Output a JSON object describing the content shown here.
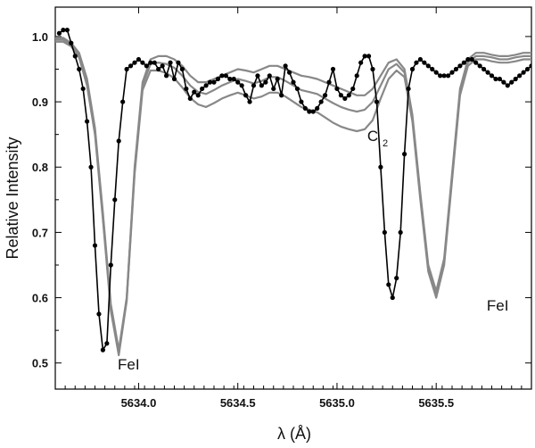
{
  "chart_data": {
    "type": "line",
    "xlabel": "λ (Å)",
    "ylabel": "Relative Intensity",
    "xlim": [
      5633.58,
      5635.98
    ],
    "ylim": [
      0.46,
      1.045
    ],
    "x_ticks": [
      5634.0,
      5634.5,
      5635.0,
      5635.5
    ],
    "x_tick_labels": [
      "5634.0",
      "5634.5",
      "5635.0",
      "5635.5"
    ],
    "y_ticks": [
      0.5,
      0.6,
      0.7,
      0.8,
      0.9,
      1.0
    ],
    "y_tick_labels": [
      "0.5",
      "0.6",
      "0.7",
      "0.8",
      "0.9",
      "1.0"
    ],
    "grid": false,
    "annotations": [
      {
        "text": "FeI",
        "x": 5633.95,
        "y": 0.49
      },
      {
        "text": "FeI",
        "x": 5635.81,
        "y": 0.58
      },
      {
        "text": "C",
        "sub": "2",
        "x": 5635.18,
        "y": 0.84
      }
    ],
    "series": [
      {
        "role": "observed",
        "color": "#000000",
        "markers": true,
        "x": [
          5633.6,
          5633.62,
          5633.64,
          5633.66,
          5633.68,
          5633.7,
          5633.72,
          5633.74,
          5633.76,
          5633.78,
          5633.8,
          5633.82,
          5633.84,
          5633.86,
          5633.88,
          5633.9,
          5633.92,
          5633.94,
          5633.96,
          5633.98,
          5634.0,
          5634.02,
          5634.04,
          5634.06,
          5634.08,
          5634.1,
          5634.12,
          5634.14,
          5634.16,
          5634.18,
          5634.2,
          5634.22,
          5634.24,
          5634.26,
          5634.28,
          5634.3,
          5634.32,
          5634.34,
          5634.36,
          5634.38,
          5634.4,
          5634.42,
          5634.44,
          5634.46,
          5634.48,
          5634.5,
          5634.52,
          5634.54,
          5634.56,
          5634.58,
          5634.6,
          5634.62,
          5634.64,
          5634.66,
          5634.68,
          5634.7,
          5634.72,
          5634.74,
          5634.76,
          5634.78,
          5634.8,
          5634.82,
          5634.84,
          5634.86,
          5634.88,
          5634.9,
          5634.92,
          5634.94,
          5634.96,
          5634.98,
          5635.0,
          5635.02,
          5635.04,
          5635.06,
          5635.08,
          5635.1,
          5635.12,
          5635.14,
          5635.16,
          5635.18,
          5635.2,
          5635.22,
          5635.24,
          5635.26,
          5635.28,
          5635.3,
          5635.32,
          5635.34,
          5635.36,
          5635.38,
          5635.4,
          5635.42,
          5635.44,
          5635.46,
          5635.48,
          5635.5,
          5635.52,
          5635.54,
          5635.56,
          5635.58,
          5635.6,
          5635.62,
          5635.64,
          5635.66,
          5635.68,
          5635.7,
          5635.72,
          5635.74,
          5635.76,
          5635.78,
          5635.8,
          5635.82,
          5635.84,
          5635.86,
          5635.88,
          5635.9,
          5635.92,
          5635.94,
          5635.96,
          5635.98
        ],
        "y": [
          1.005,
          1.01,
          1.01,
          0.99,
          0.97,
          0.95,
          0.92,
          0.87,
          0.8,
          0.68,
          0.575,
          0.52,
          0.53,
          0.65,
          0.75,
          0.84,
          0.9,
          0.95,
          0.955,
          0.96,
          0.965,
          0.96,
          0.955,
          0.96,
          0.96,
          0.95,
          0.955,
          0.94,
          0.96,
          0.935,
          0.96,
          0.95,
          0.92,
          0.905,
          0.915,
          0.91,
          0.92,
          0.925,
          0.93,
          0.93,
          0.935,
          0.94,
          0.94,
          0.935,
          0.935,
          0.93,
          0.925,
          0.91,
          0.9,
          0.925,
          0.94,
          0.925,
          0.93,
          0.94,
          0.92,
          0.935,
          0.91,
          0.955,
          0.945,
          0.93,
          0.92,
          0.9,
          0.89,
          0.885,
          0.885,
          0.89,
          0.9,
          0.91,
          0.93,
          0.95,
          0.92,
          0.91,
          0.905,
          0.91,
          0.92,
          0.94,
          0.96,
          0.97,
          0.97,
          0.95,
          0.9,
          0.8,
          0.7,
          0.62,
          0.6,
          0.63,
          0.7,
          0.82,
          0.92,
          0.95,
          0.96,
          0.965,
          0.96,
          0.955,
          0.95,
          0.945,
          0.94,
          0.94,
          0.94,
          0.945,
          0.95,
          0.955,
          0.96,
          0.965,
          0.965,
          0.96,
          0.955,
          0.95,
          0.945,
          0.94,
          0.935,
          0.935,
          0.93,
          0.925,
          0.93,
          0.935,
          0.94,
          0.945,
          0.95,
          0.955
        ]
      },
      {
        "role": "model-1",
        "color": "#888888",
        "markers": false,
        "x": [
          5633.58,
          5633.62,
          5633.66,
          5633.7,
          5633.74,
          5633.78,
          5633.82,
          5633.86,
          5633.9,
          5633.94,
          5633.98,
          5634.02,
          5634.06,
          5634.1,
          5634.14,
          5634.18,
          5634.22,
          5634.26,
          5634.3,
          5634.34,
          5634.38,
          5634.42,
          5634.46,
          5634.5,
          5634.54,
          5634.58,
          5634.62,
          5634.66,
          5634.7,
          5634.74,
          5634.78,
          5634.82,
          5634.86,
          5634.9,
          5634.94,
          5634.98,
          5635.02,
          5635.06,
          5635.1,
          5635.14,
          5635.18,
          5635.22,
          5635.26,
          5635.3,
          5635.34,
          5635.38,
          5635.42,
          5635.46,
          5635.5,
          5635.54,
          5635.58,
          5635.62,
          5635.66,
          5635.7,
          5635.74,
          5635.78,
          5635.82,
          5635.86,
          5635.9,
          5635.94,
          5635.98
        ],
        "y": [
          0.998,
          0.998,
          0.99,
          0.975,
          0.935,
          0.86,
          0.73,
          0.59,
          0.52,
          0.6,
          0.8,
          0.93,
          0.965,
          0.97,
          0.97,
          0.965,
          0.955,
          0.94,
          0.93,
          0.93,
          0.935,
          0.94,
          0.945,
          0.95,
          0.948,
          0.945,
          0.95,
          0.955,
          0.955,
          0.95,
          0.945,
          0.94,
          0.938,
          0.935,
          0.93,
          0.925,
          0.92,
          0.915,
          0.91,
          0.91,
          0.92,
          0.94,
          0.96,
          0.965,
          0.95,
          0.88,
          0.76,
          0.65,
          0.61,
          0.66,
          0.79,
          0.92,
          0.965,
          0.975,
          0.975,
          0.972,
          0.97,
          0.97,
          0.972,
          0.975,
          0.975
        ]
      },
      {
        "role": "model-2",
        "color": "#888888",
        "markers": false,
        "x": [
          5633.58,
          5633.62,
          5633.66,
          5633.7,
          5633.74,
          5633.78,
          5633.82,
          5633.86,
          5633.9,
          5633.94,
          5633.98,
          5634.02,
          5634.06,
          5634.1,
          5634.14,
          5634.18,
          5634.22,
          5634.26,
          5634.3,
          5634.34,
          5634.38,
          5634.42,
          5634.46,
          5634.5,
          5634.54,
          5634.58,
          5634.62,
          5634.66,
          5634.7,
          5634.74,
          5634.78,
          5634.82,
          5634.86,
          5634.9,
          5634.94,
          5634.98,
          5635.02,
          5635.06,
          5635.1,
          5635.14,
          5635.18,
          5635.22,
          5635.26,
          5635.3,
          5635.34,
          5635.38,
          5635.42,
          5635.46,
          5635.5,
          5635.54,
          5635.58,
          5635.62,
          5635.66,
          5635.7,
          5635.74,
          5635.78,
          5635.82,
          5635.86,
          5635.9,
          5635.94,
          5635.98
        ],
        "y": [
          0.995,
          0.995,
          0.988,
          0.972,
          0.93,
          0.855,
          0.725,
          0.585,
          0.515,
          0.598,
          0.795,
          0.925,
          0.958,
          0.96,
          0.958,
          0.952,
          0.94,
          0.925,
          0.915,
          0.912,
          0.918,
          0.925,
          0.93,
          0.935,
          0.932,
          0.928,
          0.932,
          0.938,
          0.938,
          0.932,
          0.925,
          0.918,
          0.915,
          0.912,
          0.905,
          0.898,
          0.892,
          0.888,
          0.885,
          0.888,
          0.9,
          0.925,
          0.95,
          0.958,
          0.945,
          0.875,
          0.755,
          0.645,
          0.605,
          0.655,
          0.785,
          0.915,
          0.96,
          0.97,
          0.97,
          0.968,
          0.965,
          0.965,
          0.968,
          0.97,
          0.97
        ]
      },
      {
        "role": "model-3",
        "color": "#888888",
        "markers": false,
        "x": [
          5633.58,
          5633.62,
          5633.66,
          5633.7,
          5633.74,
          5633.78,
          5633.82,
          5633.86,
          5633.9,
          5633.94,
          5633.98,
          5634.02,
          5634.06,
          5634.1,
          5634.14,
          5634.18,
          5634.22,
          5634.26,
          5634.3,
          5634.34,
          5634.38,
          5634.42,
          5634.46,
          5634.5,
          5634.54,
          5634.58,
          5634.62,
          5634.66,
          5634.7,
          5634.74,
          5634.78,
          5634.82,
          5634.86,
          5634.9,
          5634.94,
          5634.98,
          5635.02,
          5635.06,
          5635.1,
          5635.14,
          5635.18,
          5635.22,
          5635.26,
          5635.3,
          5635.34,
          5635.38,
          5635.42,
          5635.46,
          5635.5,
          5635.54,
          5635.58,
          5635.62,
          5635.66,
          5635.7,
          5635.74,
          5635.78,
          5635.82,
          5635.86,
          5635.9,
          5635.94,
          5635.98
        ],
        "y": [
          0.992,
          0.992,
          0.985,
          0.968,
          0.925,
          0.85,
          0.72,
          0.58,
          0.512,
          0.595,
          0.79,
          0.918,
          0.948,
          0.948,
          0.944,
          0.936,
          0.922,
          0.906,
          0.896,
          0.892,
          0.898,
          0.905,
          0.91,
          0.914,
          0.91,
          0.905,
          0.908,
          0.914,
          0.914,
          0.908,
          0.9,
          0.892,
          0.888,
          0.884,
          0.876,
          0.868,
          0.862,
          0.858,
          0.855,
          0.858,
          0.872,
          0.905,
          0.935,
          0.948,
          0.938,
          0.87,
          0.75,
          0.64,
          0.6,
          0.65,
          0.78,
          0.91,
          0.955,
          0.965,
          0.965,
          0.962,
          0.96,
          0.96,
          0.962,
          0.965,
          0.965
        ]
      }
    ]
  }
}
